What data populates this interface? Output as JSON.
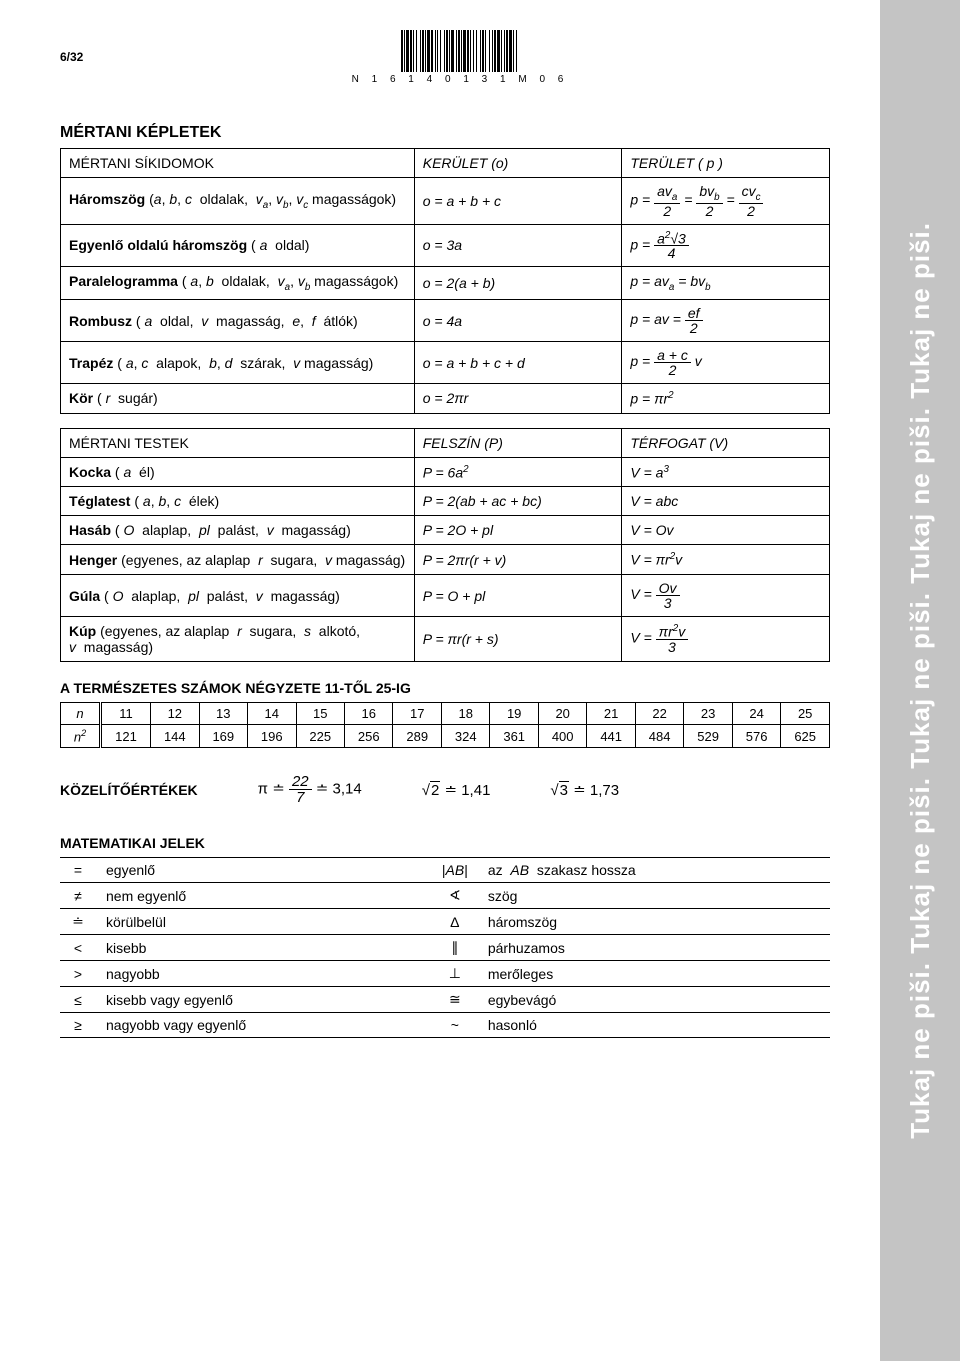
{
  "page_number": "6/32",
  "barcode_text": "N 1 6 1 4 0 1 3 1 M 0 6",
  "sidebar_text": "Tukaj ne piši. Tukaj ne piši. Tukaj ne piši. Tukaj ne piši. Tukaj ne piši.",
  "section_geom_title": "MÉRTANI KÉPLETEK",
  "table1": {
    "header": [
      "MÉRTANI SÍKIDOMOK",
      "KERÜLET (o)",
      "TERÜLET ( p )"
    ],
    "rows": [
      {
        "name_html": "<b>Háromszög</b> (<i>a</i>, <i>b</i>, <i>c</i>&nbsp;&nbsp;oldalak,&nbsp;&nbsp;<i>v<sub>a</sub></i>, <i>v<sub>b</sub></i>, <i>v<sub>c</sub></i> magasságok)",
        "perim_html": "<i>o</i> = <i>a</i> + <i>b</i> + <i>c</i>",
        "area_html": "<i>p</i> = <span class='frac'><span class='num'>av<sub>a</sub></span><span class='den'>2</span></span> = <span class='frac'><span class='num'>bv<sub>b</sub></span><span class='den'>2</span></span> = <span class='frac'><span class='num'>cv<sub>c</sub></span><span class='den'>2</span></span>"
      },
      {
        "name_html": "<b>Egyenlő oldalú háromszög</b> ( <i>a</i>&nbsp;&nbsp;oldal)",
        "perim_html": "<i>o</i> = 3<i>a</i>",
        "area_html": "<i>p</i> = <span class='frac'><span class='num'>a<sup>2</sup>√3</span><span class='den'>4</span></span>"
      },
      {
        "name_html": "<b>Paralelogramma</b> ( <i>a</i>, <i>b</i>&nbsp;&nbsp;oldalak,&nbsp;&nbsp;<i>v<sub>a</sub></i>, <i>v<sub>b</sub></i> magasságok)",
        "perim_html": "<i>o</i> = 2(<i>a</i> + <i>b</i>)",
        "area_html": "<i>p</i> = <i>av<sub>a</sub></i> = <i>bv<sub>b</sub></i>"
      },
      {
        "name_html": "<b>Rombusz</b> ( <i>a</i>&nbsp;&nbsp;oldal,&nbsp;&nbsp;<i>v</i>&nbsp;&nbsp;magasság,&nbsp;&nbsp;<i>e</i>,&nbsp;&nbsp;<i>f</i>&nbsp;&nbsp;átlók)",
        "perim_html": "<i>o</i> = 4<i>a</i>",
        "area_html": "<i>p</i> = <i>av</i> = <span class='frac'><span class='num'>ef</span><span class='den'>2</span></span>"
      },
      {
        "name_html": "<b>Trapéz</b> ( <i>a</i>, <i>c</i>&nbsp;&nbsp;alapok,&nbsp;&nbsp;<i>b</i>, <i>d</i>&nbsp;&nbsp;szárak,&nbsp;&nbsp;<i>v</i> magasság)",
        "perim_html": "<i>o</i> = <i>a</i> + <i>b</i> + <i>c</i> + <i>d</i>",
        "area_html": "<i>p</i> = <span class='frac'><span class='num'>a + c</span><span class='den'>2</span></span> <i>v</i>"
      },
      {
        "name_html": "<b>Kör</b> ( <i>r</i>&nbsp;&nbsp;sugár)",
        "perim_html": "<i>o</i> = 2π<i>r</i>",
        "area_html": "<i>p</i> = π<i>r</i><sup>2</sup>"
      }
    ]
  },
  "table2": {
    "header": [
      "MÉRTANI TESTEK",
      "FELSZÍN (P)",
      "TÉRFOGAT (V)"
    ],
    "rows": [
      {
        "name_html": "<b>Kocka</b> ( <i>a</i>&nbsp;&nbsp;él)",
        "surf_html": "<i>P</i> = 6<i>a</i><sup>2</sup>",
        "vol_html": "<i>V</i> = <i>a</i><sup>3</sup>"
      },
      {
        "name_html": "<b>Téglatest</b> ( <i>a</i>, <i>b</i>, <i>c</i>&nbsp;&nbsp;élek)",
        "surf_html": "<i>P</i> = 2(<i>ab</i> + <i>ac</i> + <i>bc</i>)",
        "vol_html": "<i>V</i> = <i>abc</i>"
      },
      {
        "name_html": "<b>Hasáb</b> ( <i>O</i>&nbsp;&nbsp;alaplap,&nbsp;&nbsp;<i>pl</i>&nbsp;&nbsp;palást,&nbsp;&nbsp;<i>v</i>&nbsp;&nbsp;magasság)",
        "surf_html": "<i>P</i> = 2<i>O</i> + <i>pl</i>",
        "vol_html": "<i>V</i> = <i>Ov</i>"
      },
      {
        "name_html": "<b>Henger</b> (egyenes, az alaplap&nbsp;&nbsp;<i>r</i>&nbsp;&nbsp;sugara,&nbsp;&nbsp;<i>v</i> magasság)",
        "surf_html": "<i>P</i> = 2π<i>r</i>(<i>r</i> + <i>v</i>)",
        "vol_html": "<i>V</i> = π<i>r</i><sup>2</sup><i>v</i>"
      },
      {
        "name_html": "<b>Gúla</b> ( <i>O</i>&nbsp;&nbsp;alaplap,&nbsp;&nbsp;<i>pl</i>&nbsp;&nbsp;palást,&nbsp;&nbsp;<i>v</i>&nbsp;&nbsp;magasság)",
        "surf_html": "<i>P</i> = <i>O</i> + <i>pl</i>",
        "vol_html": "<i>V</i> = <span class='frac'><span class='num'>Ov</span><span class='den'>3</span></span>"
      },
      {
        "name_html": "<b>Kúp</b> (egyenes, az alaplap&nbsp;&nbsp;<i>r</i>&nbsp;&nbsp;sugara,&nbsp;&nbsp;<i>s</i>&nbsp;&nbsp;alkotó, <i>v</i>&nbsp;&nbsp;magasság)",
        "surf_html": "<i>P</i> = π<i>r</i>(<i>r</i> + <i>s</i>)",
        "vol_html": "<i>V</i> = <span class='frac'><span class='num'>π<i>r</i><sup>2</sup><i>v</i></span><span class='den'>3</span></span>"
      }
    ]
  },
  "squares_title": "A TERMÉSZETES SZÁMOK NÉGYZETE 11-TŐL 25-IG",
  "squares": {
    "row_labels": [
      "n",
      "n²"
    ],
    "n": [
      11,
      12,
      13,
      14,
      15,
      16,
      17,
      18,
      19,
      20,
      21,
      22,
      23,
      24,
      25
    ],
    "n2": [
      121,
      144,
      169,
      196,
      225,
      256,
      289,
      324,
      361,
      400,
      441,
      484,
      529,
      576,
      625
    ]
  },
  "approx_title": "KÖZELÍTŐÉRTÉKEK",
  "approx": {
    "pi_html": "π ≐ <span class='frac'><span class='num'>22</span><span class='den'>7</span></span> ≐ 3,14",
    "sqrt2_html": "<span class='sqrt'><span>2</span></span> ≐ 1,41",
    "sqrt3_html": "<span class='sqrt'><span>3</span></span> ≐ 1,73"
  },
  "symbols_title": "MATEMATIKAI JELEK",
  "symbols": {
    "left": [
      {
        "sym": "=",
        "desc": "egyenlő"
      },
      {
        "sym": "≠",
        "desc": "nem egyenlő"
      },
      {
        "sym": "≐",
        "desc": "körülbelül"
      },
      {
        "sym": "<",
        "desc": "kisebb"
      },
      {
        "sym": ">",
        "desc": "nagyobb"
      },
      {
        "sym": "≤",
        "desc": "kisebb vagy egyenlő"
      },
      {
        "sym": "≥",
        "desc": "nagyobb vagy egyenlő"
      }
    ],
    "right": [
      {
        "sym_html": "|<i>AB</i>|",
        "desc_html": "az&nbsp;&nbsp;<i>AB</i>&nbsp;&nbsp;szakasz hossza"
      },
      {
        "sym_html": "∢",
        "desc_html": "szög"
      },
      {
        "sym_html": "Δ",
        "desc_html": "háromszög"
      },
      {
        "sym_html": "∥",
        "desc_html": "párhuzamos"
      },
      {
        "sym_html": "⊥",
        "desc_html": "merőleges"
      },
      {
        "sym_html": "≅",
        "desc_html": "egybevágó"
      },
      {
        "sym_html": "~",
        "desc_html": "hasonló"
      }
    ]
  },
  "colors": {
    "page_bg": "#ffffff",
    "sidebar_bg": "#c4c4c4",
    "sidebar_text": "#ffffff",
    "border": "#000000"
  }
}
